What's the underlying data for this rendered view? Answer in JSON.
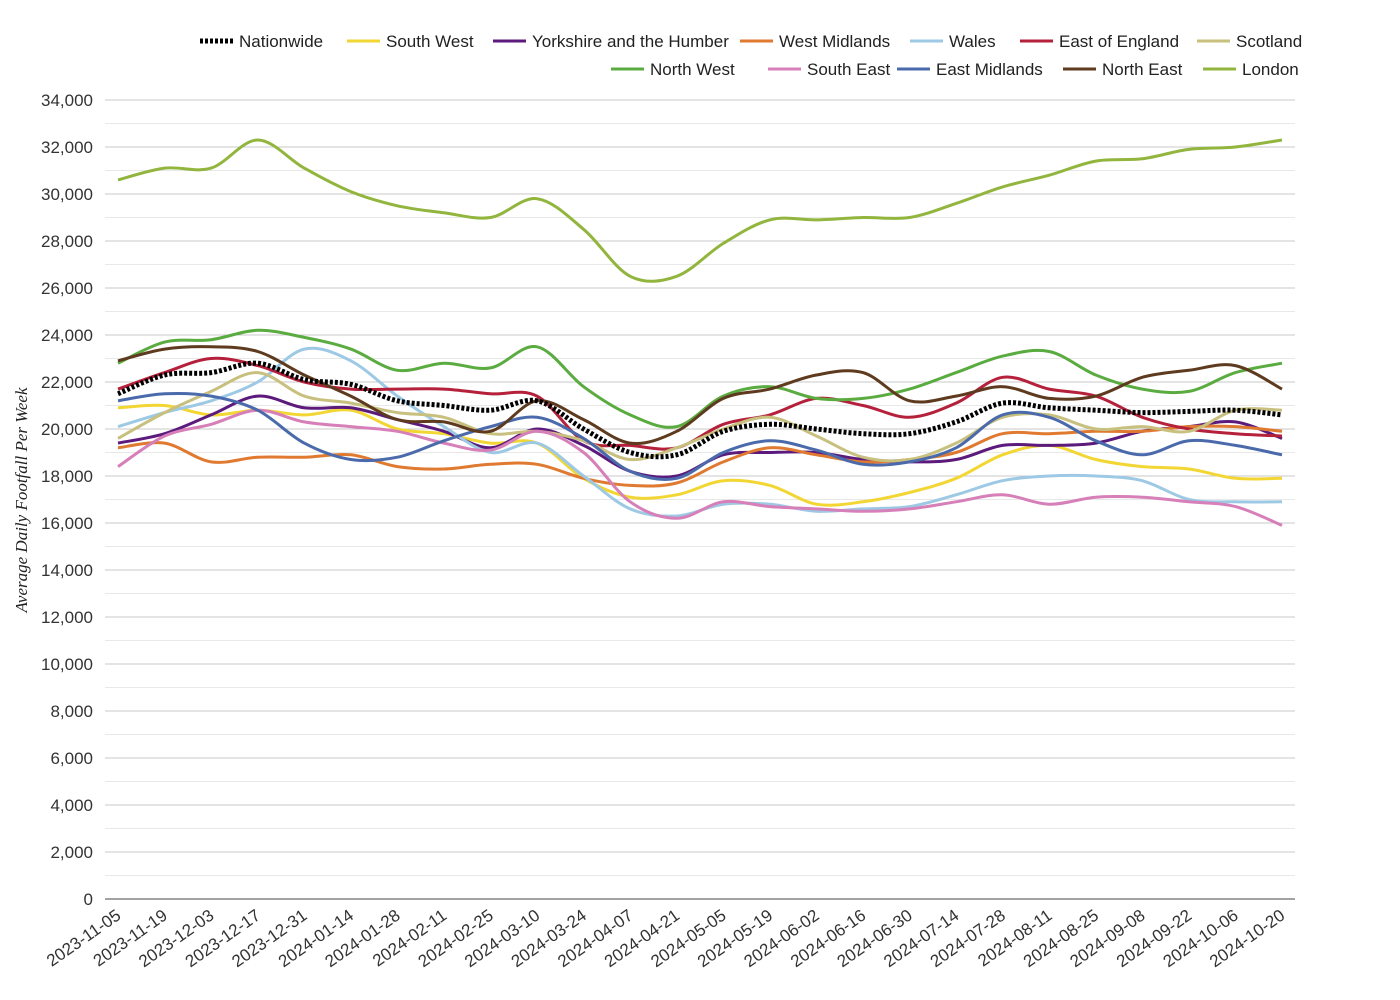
{
  "chart_data": {
    "type": "line",
    "title": "",
    "xlabel": "",
    "ylabel": "Average Daily Footfall Per Week",
    "ylim": [
      0,
      34000
    ],
    "yticks": [
      0,
      2000,
      4000,
      6000,
      8000,
      10000,
      12000,
      14000,
      16000,
      18000,
      20000,
      22000,
      24000,
      26000,
      28000,
      30000,
      32000,
      34000
    ],
    "ytick_labels": [
      "0",
      "2,000",
      "4,000",
      "6,000",
      "8,000",
      "10,000",
      "12,000",
      "14,000",
      "16,000",
      "18,000",
      "20,000",
      "22,000",
      "24,000",
      "26,000",
      "28,000",
      "30,000",
      "32,000",
      "34,000"
    ],
    "grid": true,
    "legend": "top",
    "x_tick_labels": [
      "2023-11-05",
      "2023-11-19",
      "2023-12-03",
      "2023-12-17",
      "2023-12-31",
      "2024-01-14",
      "2024-01-28",
      "2024-02-11",
      "2024-02-25",
      "2024-03-10",
      "2024-03-24",
      "2024-04-07",
      "2024-04-21",
      "2024-05-05",
      "2024-05-19",
      "2024-06-02",
      "2024-06-16",
      "2024-06-30",
      "2024-07-14",
      "2024-07-28",
      "2024-08-11",
      "2024-08-25",
      "2024-09-08",
      "2024-09-22",
      "2024-10-06",
      "2024-10-20"
    ],
    "series": [
      {
        "name": "Nationwide",
        "color": "#000000",
        "style": "dotted",
        "values": [
          21500,
          22300,
          22400,
          22800,
          22100,
          21900,
          21200,
          21000,
          20800,
          21200,
          20000,
          19000,
          18900,
          19900,
          20200,
          20000,
          19800,
          19800,
          20300,
          21100,
          20900,
          20800,
          20700,
          20750,
          20800,
          20600
        ]
      },
      {
        "name": "South West",
        "color": "#f2d633",
        "values": [
          20900,
          21000,
          20600,
          20800,
          20600,
          20800,
          20000,
          19800,
          19400,
          19400,
          17900,
          17100,
          17200,
          17800,
          17600,
          16800,
          16900,
          17300,
          17900,
          18900,
          19300,
          18700,
          18400,
          18300,
          17900,
          17900
        ]
      },
      {
        "name": "Yorkshire and the Humber",
        "color": "#5c1a7d",
        "values": [
          19400,
          19800,
          20600,
          21400,
          20900,
          20900,
          20400,
          19900,
          19200,
          20000,
          19300,
          18200,
          18000,
          18900,
          19000,
          19000,
          18700,
          18600,
          18700,
          19300,
          19300,
          19400,
          19900,
          20100,
          20300,
          19600
        ]
      },
      {
        "name": "West Midlands",
        "color": "#e07a30",
        "values": [
          19200,
          19400,
          18600,
          18800,
          18800,
          18900,
          18400,
          18300,
          18500,
          18500,
          17900,
          17600,
          17700,
          18600,
          19200,
          18900,
          18600,
          18700,
          19000,
          19800,
          19800,
          19900,
          19900,
          20100,
          20100,
          19900
        ]
      },
      {
        "name": "Wales",
        "color": "#9dc9e4",
        "values": [
          20100,
          20700,
          21200,
          22000,
          23400,
          22900,
          21400,
          20100,
          19000,
          19400,
          18000,
          16600,
          16300,
          16800,
          16800,
          16500,
          16600,
          16700,
          17200,
          17800,
          18000,
          18000,
          17800,
          17000,
          16900,
          16900
        ]
      },
      {
        "name": "East of England",
        "color": "#b5213b",
        "values": [
          21700,
          22400,
          23000,
          22700,
          22000,
          21700,
          21700,
          21700,
          21500,
          21400,
          19500,
          19300,
          19200,
          20200,
          20600,
          21300,
          21000,
          20500,
          21100,
          22200,
          21700,
          21400,
          20500,
          20000,
          19800,
          19700
        ]
      },
      {
        "name": "Scotland",
        "color": "#c8c07e",
        "values": [
          19600,
          20700,
          21600,
          22400,
          21400,
          21100,
          20700,
          20500,
          19800,
          19900,
          19500,
          18700,
          19200,
          20000,
          20500,
          19700,
          18800,
          18700,
          19400,
          20500,
          20600,
          20000,
          20100,
          19900,
          20800,
          20800
        ]
      },
      {
        "name": "North West",
        "color": "#5aab40",
        "values": [
          22800,
          23700,
          23800,
          24200,
          23900,
          23400,
          22500,
          22800,
          22600,
          23500,
          21800,
          20600,
          20100,
          21400,
          21800,
          21300,
          21300,
          21700,
          22400,
          23100,
          23300,
          22300,
          21700,
          21600,
          22400,
          22800
        ]
      },
      {
        "name": "South East",
        "color": "#d67fb8",
        "values": [
          18400,
          19700,
          20200,
          20800,
          20300,
          20100,
          19900,
          19400,
          19100,
          19900,
          19000,
          16900,
          16200,
          16900,
          16700,
          16600,
          16500,
          16600,
          16900,
          17200,
          16800,
          17100,
          17100,
          16900,
          16700,
          15900
        ]
      },
      {
        "name": "East Midlands",
        "color": "#4a6aab",
        "values": [
          21200,
          21500,
          21400,
          20800,
          19400,
          18700,
          18800,
          19500,
          20100,
          20500,
          19600,
          18200,
          17900,
          19000,
          19500,
          19100,
          18500,
          18600,
          19200,
          20600,
          20500,
          19500,
          18900,
          19500,
          19300,
          18900
        ]
      },
      {
        "name": "North East",
        "color": "#5e3a1e",
        "values": [
          22900,
          23400,
          23500,
          23300,
          22300,
          21400,
          20400,
          20300,
          19900,
          21200,
          20400,
          19400,
          19900,
          21300,
          21700,
          22300,
          22400,
          21200,
          21400,
          21800,
          21300,
          21400,
          22200,
          22500,
          22700,
          21700
        ]
      },
      {
        "name": "London",
        "color": "#92b53e",
        "values": [
          30600,
          31100,
          31100,
          32300,
          31100,
          30100,
          29500,
          29200,
          29000,
          29800,
          28500,
          26500,
          26500,
          27900,
          28900,
          28900,
          29000,
          29000,
          29600,
          30300,
          30800,
          31400,
          31500,
          31900,
          32000,
          32300
        ]
      }
    ]
  }
}
